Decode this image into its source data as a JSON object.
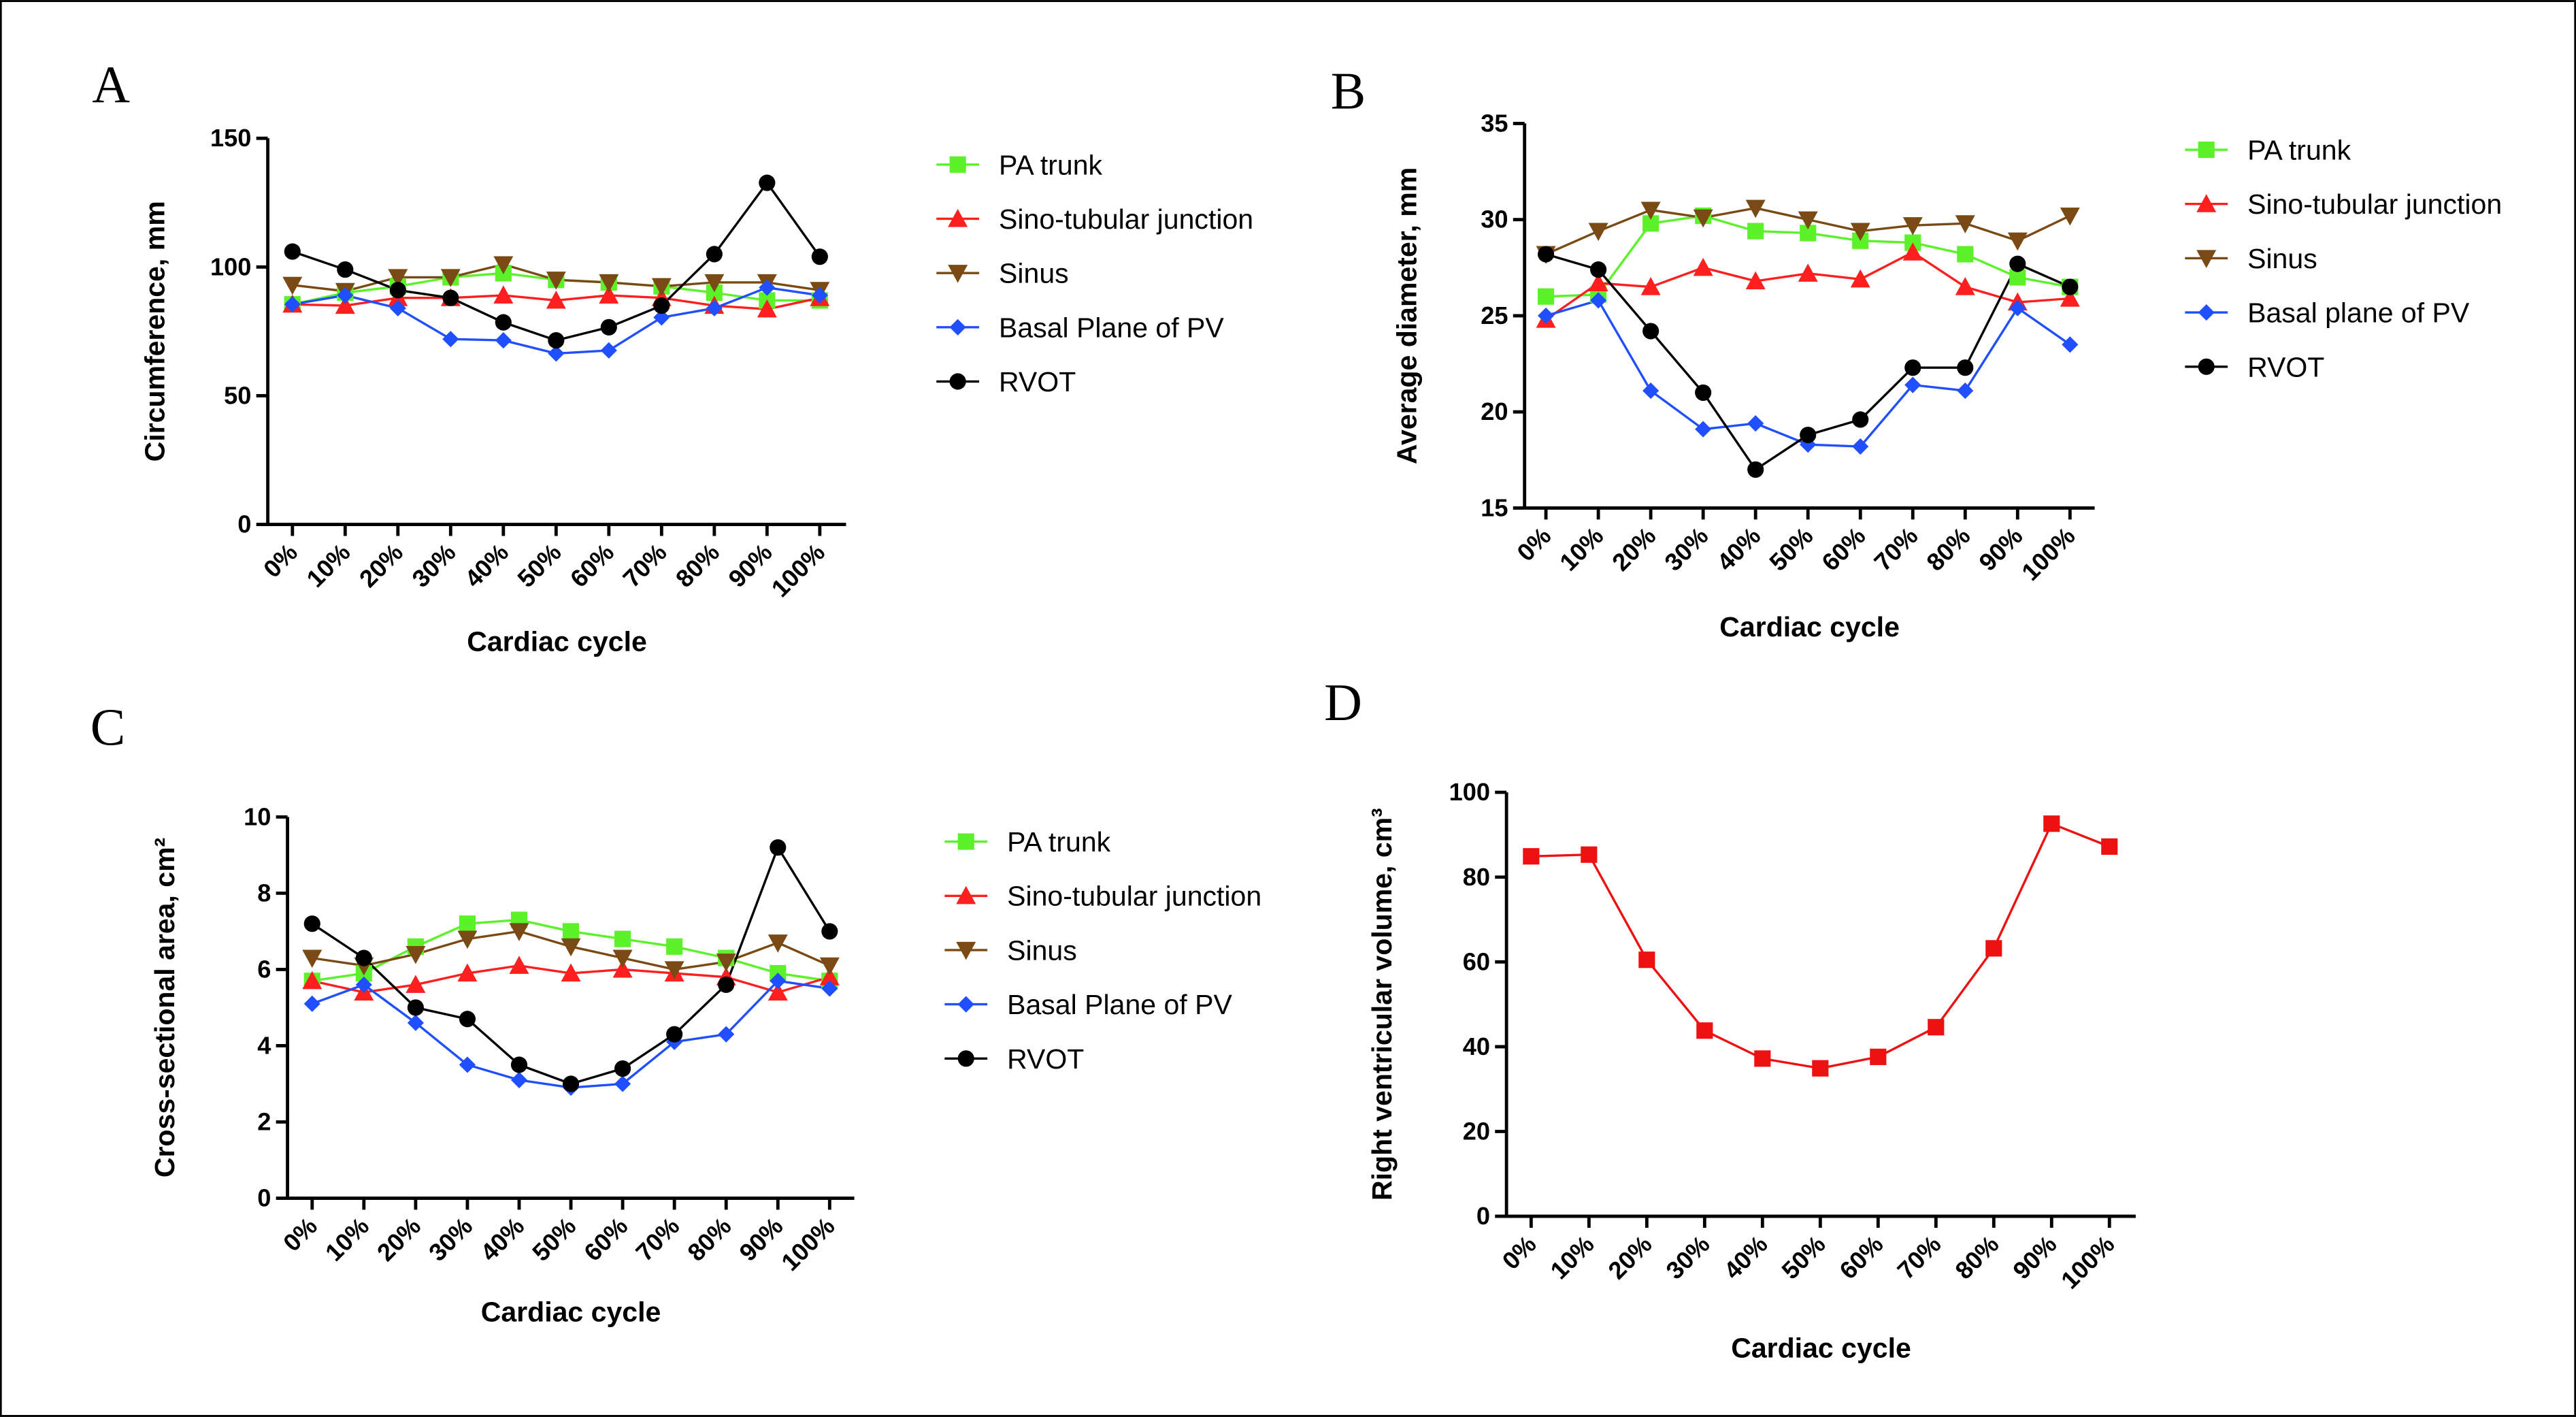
{
  "chart_data": [
    {
      "type": "line",
      "panel": "A",
      "ylabel": "Circumference, mm",
      "xlabel": "Cardiac cycle",
      "categories": [
        "0%",
        "10%",
        "20%",
        "30%",
        "40%",
        "50%",
        "60%",
        "70%",
        "80%",
        "90%",
        "100%"
      ],
      "ylim": [
        0,
        150
      ],
      "yticks": [
        0,
        50,
        100,
        150
      ],
      "series": [
        {
          "name": "PA trunk",
          "color": "#5cf22a",
          "marker": "square",
          "values": [
            85.5,
            90,
            92.5,
            96,
            97.6,
            95,
            94,
            92.5,
            90,
            87,
            87
          ]
        },
        {
          "name": "Sino-tubular junction",
          "color": "#ff1f1f",
          "marker": "triangle-up",
          "values": [
            85.5,
            85,
            88,
            88,
            89,
            87,
            89,
            88,
            85,
            83.6,
            88
          ]
        },
        {
          "name": "Sinus",
          "color": "#7a4a14",
          "marker": "triangle-down",
          "values": [
            93,
            90.6,
            96,
            96,
            101,
            95,
            94,
            92.5,
            94,
            94,
            91
          ]
        },
        {
          "name": "Basal Plane of PV",
          "color": "#1f4fff",
          "marker": "diamond",
          "values": [
            85.5,
            89,
            84,
            72,
            71.5,
            66.4,
            67.6,
            80.4,
            84,
            92,
            89
          ]
        },
        {
          "name": "RVOT",
          "color": "#000000",
          "marker": "circle",
          "values": [
            106,
            99,
            91,
            88,
            78.5,
            71.5,
            76.6,
            85,
            105,
            132.7,
            104
          ]
        }
      ]
    },
    {
      "type": "line",
      "panel": "B",
      "ylabel": "Average diameter, mm",
      "xlabel": "Cardiac cycle",
      "categories": [
        "0%",
        "10%",
        "20%",
        "30%",
        "40%",
        "50%",
        "60%",
        "70%",
        "80%",
        "90%",
        "100%"
      ],
      "ylim": [
        15,
        35
      ],
      "yticks": [
        15,
        20,
        25,
        30,
        35
      ],
      "series": [
        {
          "name": "PA trunk",
          "color": "#5cf22a",
          "marker": "square",
          "values": [
            26.0,
            26.1,
            29.8,
            30.2,
            29.4,
            29.3,
            28.9,
            28.8,
            28.2,
            27.0,
            26.5
          ]
        },
        {
          "name": "Sino-tubular junction",
          "color": "#ff1f1f",
          "marker": "triangle-up",
          "values": [
            24.8,
            26.7,
            26.5,
            27.5,
            26.8,
            27.2,
            26.9,
            28.3,
            26.5,
            25.7,
            25.9
          ]
        },
        {
          "name": "Sinus",
          "color": "#7a4a14",
          "marker": "triangle-down",
          "values": [
            28.2,
            29.4,
            30.5,
            30.1,
            30.6,
            30.0,
            29.4,
            29.7,
            29.8,
            28.9,
            30.2
          ]
        },
        {
          "name": "Basal plane of PV",
          "color": "#1f4fff",
          "marker": "diamond",
          "values": [
            25.0,
            25.8,
            21.1,
            19.1,
            19.4,
            18.3,
            18.2,
            21.4,
            21.1,
            25.4,
            23.5
          ]
        },
        {
          "name": "RVOT",
          "color": "#000000",
          "marker": "circle",
          "values": [
            28.2,
            27.4,
            24.2,
            21.0,
            17.0,
            18.8,
            19.6,
            22.3,
            22.3,
            27.7,
            26.5
          ]
        }
      ]
    },
    {
      "type": "line",
      "panel": "C",
      "ylabel": "Cross-sectional area, cm²",
      "xlabel": "Cardiac cycle",
      "categories": [
        "0%",
        "10%",
        "20%",
        "30%",
        "40%",
        "50%",
        "60%",
        "70%",
        "80%",
        "90%",
        "100%"
      ],
      "ylim": [
        0,
        10
      ],
      "yticks": [
        0,
        2,
        4,
        6,
        8,
        10
      ],
      "series": [
        {
          "name": "PA trunk",
          "color": "#5cf22a",
          "marker": "square",
          "values": [
            5.7,
            5.9,
            6.6,
            7.2,
            7.3,
            7.0,
            6.8,
            6.6,
            6.3,
            5.9,
            5.7
          ]
        },
        {
          "name": "Sino-tubular junction",
          "color": "#ff1f1f",
          "marker": "triangle-up",
          "values": [
            5.7,
            5.4,
            5.6,
            5.9,
            6.1,
            5.9,
            6.0,
            5.9,
            5.8,
            5.4,
            5.8
          ]
        },
        {
          "name": "Sinus",
          "color": "#7a4a14",
          "marker": "triangle-down",
          "values": [
            6.3,
            6.1,
            6.4,
            6.8,
            7.0,
            6.6,
            6.3,
            6.0,
            6.2,
            6.7,
            6.1
          ]
        },
        {
          "name": "Basal Plane of PV",
          "color": "#1f4fff",
          "marker": "diamond",
          "values": [
            5.1,
            5.6,
            4.6,
            3.5,
            3.1,
            2.9,
            3.0,
            4.1,
            4.3,
            5.7,
            5.5
          ]
        },
        {
          "name": "RVOT",
          "color": "#000000",
          "marker": "circle",
          "values": [
            7.2,
            6.3,
            5.0,
            4.7,
            3.5,
            3.0,
            3.4,
            4.3,
            5.6,
            9.2,
            7.0
          ]
        }
      ]
    },
    {
      "type": "line",
      "panel": "D",
      "ylabel": "Right ventricular volume, cm³",
      "xlabel": "Cardiac cycle",
      "categories": [
        "0%",
        "10%",
        "20%",
        "30%",
        "40%",
        "50%",
        "60%",
        "70%",
        "80%",
        "90%",
        "100%"
      ],
      "ylim": [
        0,
        100
      ],
      "yticks": [
        0,
        20,
        40,
        60,
        80,
        100
      ],
      "color": "#ee1111",
      "marker": "square",
      "values": [
        84.9,
        85.3,
        60.5,
        43.8,
        37.2,
        34.9,
        37.6,
        44.6,
        63.2,
        92.6,
        87.2
      ]
    }
  ]
}
